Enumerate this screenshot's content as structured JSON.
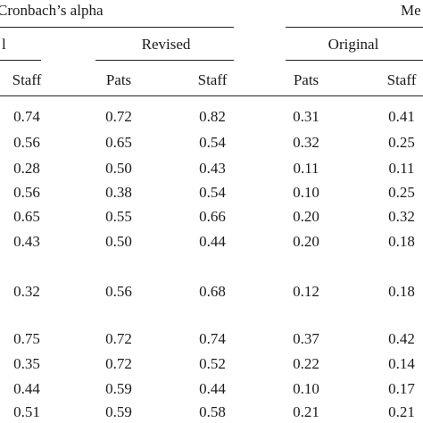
{
  "table": {
    "group_header": "Cronbach’s alpha",
    "group_header_2": "Me",
    "sub_headers": [
      "l",
      "Revised",
      "Original"
    ],
    "columns": [
      "Staff",
      "Pats",
      "Staff",
      "Pats",
      "Staff"
    ],
    "rows": [
      [
        "0.74",
        "0.72",
        "0.82",
        "0.31",
        "0.41"
      ],
      [
        "0.56",
        "0.65",
        "0.54",
        "0.32",
        "0.25"
      ],
      [
        "0.28",
        "0.50",
        "0.43",
        "0.11",
        "0.11"
      ],
      [
        "0.56",
        "0.38",
        "0.54",
        "0.10",
        "0.25"
      ],
      [
        "0.65",
        "0.55",
        "0.66",
        "0.20",
        "0.32"
      ],
      [
        "0.43",
        "0.50",
        "0.44",
        "0.20",
        "0.18"
      ],
      [
        "0.32",
        "0.56",
        "0.68",
        "0.12",
        "0.18"
      ],
      [
        "0.75",
        "0.72",
        "0.74",
        "0.37",
        "0.42"
      ],
      [
        "0.35",
        "0.72",
        "0.52",
        "0.22",
        "0.14"
      ],
      [
        "0.44",
        "0.59",
        "0.44",
        "0.10",
        "0.17"
      ],
      [
        "0.51",
        "0.59",
        "0.58",
        "0.21",
        "0.21"
      ]
    ]
  }
}
